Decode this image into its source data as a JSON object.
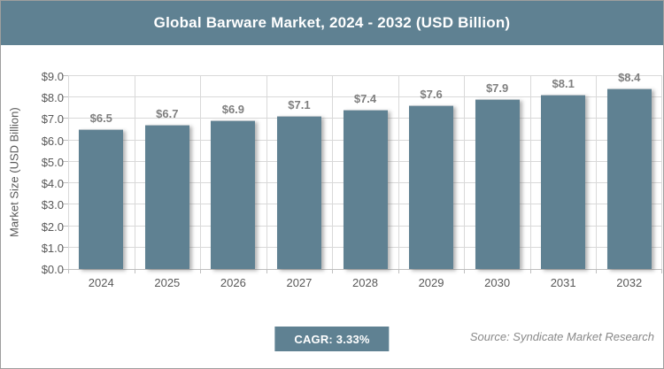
{
  "title": "Global Barware Market, 2024 - 2032 (USD Billion)",
  "chart_data": {
    "type": "bar",
    "categories": [
      "2024",
      "2025",
      "2026",
      "2027",
      "2028",
      "2029",
      "2030",
      "2031",
      "2032"
    ],
    "values": [
      6.5,
      6.7,
      6.9,
      7.1,
      7.4,
      7.6,
      7.9,
      8.1,
      8.4
    ],
    "value_labels": [
      "$6.5",
      "$6.7",
      "$6.9",
      "$7.1",
      "$7.4",
      "$7.6",
      "$7.9",
      "$8.1",
      "$8.4"
    ],
    "title": "Global Barware Market, 2024 - 2032 (USD Billion)",
    "xlabel": "",
    "ylabel": "Market Size (USD Billion)",
    "ylim": [
      0,
      9
    ],
    "ytick_step": 1,
    "y_tick_labels": [
      "$0.0",
      "$1.0",
      "$2.0",
      "$3.0",
      "$4.0",
      "$5.0",
      "$6.0",
      "$7.0",
      "$8.0",
      "$9.0"
    ],
    "grid": true,
    "legend": "none",
    "bar_color": "#5F8192"
  },
  "footer": {
    "cagr_label": "CAGR: 3.33%",
    "source": "Source: Syndicate Market Research"
  },
  "colors": {
    "band_background": "#5F8192",
    "bar_fill": "#5F8192",
    "gridline": "#D9D9D9",
    "axis_line": "#BFBFBF",
    "tick_text": "#595959",
    "data_label_text": "#7F7F7F",
    "source_text": "#898989",
    "title_text": "#FFFFFF",
    "outer_border": "#9E9E9E"
  }
}
